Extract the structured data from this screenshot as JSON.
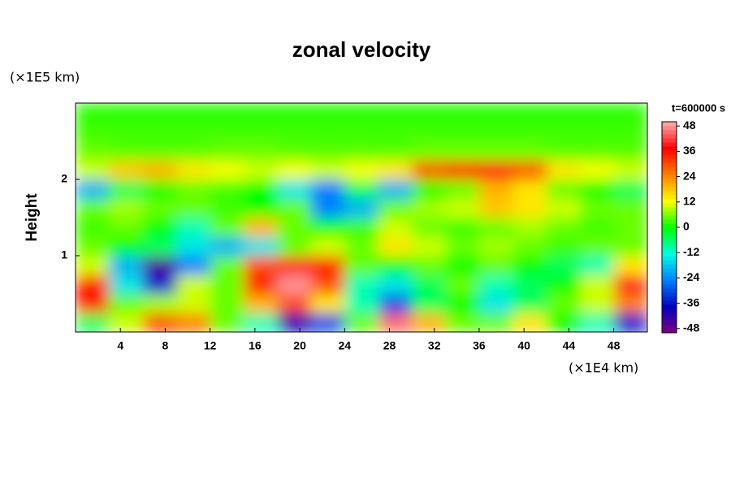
{
  "chart_data": {
    "type": "heatmap",
    "title": "zonal velocity",
    "ylabel": "Height",
    "y_unit": "(×1E5 km)",
    "x_unit": "(×1E4 km)",
    "colorbar_title": "t=600000 s",
    "xlim": [
      0,
      51
    ],
    "ylim": [
      0,
      3
    ],
    "xticks": [
      4,
      8,
      12,
      16,
      20,
      24,
      28,
      32,
      36,
      40,
      44,
      48
    ],
    "yticks": [
      1,
      2
    ],
    "clim": [
      -50,
      50
    ],
    "cticks": [
      48,
      36,
      24,
      12,
      0,
      -12,
      -24,
      -36,
      -48
    ],
    "colors": [
      "#800080",
      "#0000c0",
      "#0080ff",
      "#00ffe0",
      "#00ff00",
      "#ffff00",
      "#ff8000",
      "#ff0000",
      "#ffb0b0"
    ],
    "x": [
      1.5,
      4.5,
      7.5,
      10.5,
      13.5,
      16.5,
      19.5,
      22.5,
      25.5,
      28.5,
      31.5,
      34.5,
      37.5,
      40.5,
      43.5,
      46.5,
      49.5
    ],
    "y": [
      0.125,
      0.375,
      0.625,
      0.875,
      1.125,
      1.375,
      1.625,
      1.875,
      2.125,
      2.375,
      2.625,
      2.875
    ],
    "z": [
      [
        -5,
        10,
        30,
        25,
        5,
        -10,
        -40,
        -30,
        5,
        45,
        20,
        5,
        5,
        15,
        0,
        -10,
        -35
      ],
      [
        35,
        5,
        8,
        10,
        5,
        20,
        30,
        15,
        -10,
        -30,
        -5,
        0,
        -15,
        -5,
        5,
        10,
        25
      ],
      [
        35,
        -15,
        -35,
        10,
        5,
        35,
        48,
        30,
        -10,
        -15,
        -5,
        5,
        -10,
        -5,
        0,
        10,
        40
      ],
      [
        10,
        -20,
        -45,
        -25,
        5,
        30,
        40,
        35,
        5,
        0,
        5,
        0,
        5,
        0,
        -5,
        -10,
        15
      ],
      [
        5,
        0,
        -5,
        -15,
        -20,
        -15,
        5,
        10,
        5,
        15,
        10,
        5,
        8,
        5,
        3,
        5,
        5
      ],
      [
        3,
        5,
        0,
        -10,
        5,
        20,
        5,
        0,
        3,
        10,
        5,
        3,
        5,
        8,
        5,
        3,
        5
      ],
      [
        5,
        8,
        5,
        5,
        3,
        0,
        5,
        -25,
        -20,
        5,
        8,
        10,
        18,
        15,
        10,
        5,
        5
      ],
      [
        -20,
        -5,
        0,
        5,
        3,
        0,
        -15,
        -25,
        -5,
        -20,
        0,
        5,
        20,
        15,
        5,
        0,
        -5
      ],
      [
        10,
        18,
        20,
        15,
        12,
        10,
        12,
        10,
        12,
        15,
        30,
        35,
        38,
        30,
        15,
        12,
        10
      ],
      [
        5,
        4,
        4,
        4,
        5,
        5,
        4,
        4,
        4,
        4,
        5,
        5,
        5,
        5,
        4,
        4,
        4
      ],
      [
        3,
        3,
        3,
        3,
        3,
        3,
        3,
        3,
        3,
        3,
        3,
        3,
        3,
        3,
        3,
        3,
        3
      ],
      [
        2,
        2,
        2,
        2,
        2,
        2,
        2,
        2,
        2,
        2,
        2,
        2,
        2,
        2,
        2,
        2,
        2
      ]
    ]
  }
}
